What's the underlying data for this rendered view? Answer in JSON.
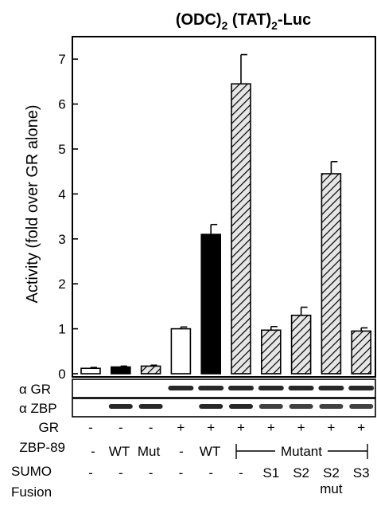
{
  "chart_data": {
    "type": "bar",
    "title_main_1": "(ODC)",
    "title_sub_1": "2",
    "title_main_2": " (TAT)",
    "title_sub_2": "2",
    "title_main_3": "-Luc",
    "ylabel": "Activity (fold over GR alone)",
    "ylim": [
      0,
      7.5
    ],
    "yticks": [
      "0",
      "1",
      "2",
      "3",
      "4",
      "5",
      "6",
      "7"
    ],
    "grid": false,
    "bars": [
      {
        "value": 0.12,
        "error": 0.02,
        "fill": "white"
      },
      {
        "value": 0.15,
        "error": 0.02,
        "fill": "black"
      },
      {
        "value": 0.17,
        "error": 0.02,
        "fill": "hatch"
      },
      {
        "value": 1.0,
        "error": 0.04,
        "fill": "white"
      },
      {
        "value": 3.1,
        "error": 0.22,
        "fill": "black"
      },
      {
        "value": 6.45,
        "error": 0.65,
        "fill": "hatch"
      },
      {
        "value": 0.97,
        "error": 0.08,
        "fill": "hatch"
      },
      {
        "value": 1.3,
        "error": 0.18,
        "fill": "hatch"
      },
      {
        "value": 4.45,
        "error": 0.27,
        "fill": "hatch"
      },
      {
        "value": 0.95,
        "error": 0.07,
        "fill": "hatch"
      }
    ],
    "blot_labels": [
      "α GR",
      "α ZBP"
    ],
    "gr_label": "GR",
    "gr_row": [
      "-",
      "-",
      "-",
      "+",
      "+",
      "+",
      "+",
      "+",
      "+",
      "+"
    ],
    "zbp_label": "ZBP-89",
    "zbp_labels": [
      "-",
      "WT",
      "Mut",
      "-",
      "WT"
    ],
    "zbp_bracket": "Mutant",
    "sumo_label_1": "SUMO",
    "sumo_label_2": "Fusion",
    "sumo_row": [
      "-",
      "-",
      "-",
      "-",
      "-",
      "-",
      "S1",
      "S2",
      "S2",
      "S3"
    ],
    "sumo_row_extra": "mut"
  },
  "colors": {
    "axis": "#000000",
    "hatch_bg": "#e6e6e6"
  }
}
